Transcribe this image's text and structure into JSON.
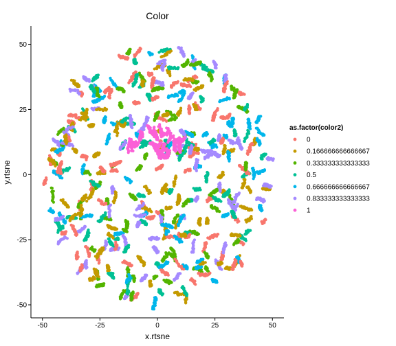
{
  "chart_data": {
    "type": "scatter",
    "title": "Color",
    "xlabel": "x.rtsne",
    "ylabel": "y.rtsne",
    "xlim": [
      -55,
      55
    ],
    "ylim": [
      -55,
      57
    ],
    "x_ticks": [
      -50,
      -25,
      0,
      25,
      50
    ],
    "y_ticks": [
      -50,
      -25,
      0,
      25,
      50
    ],
    "x_tick_labels": [
      "-50",
      "-25",
      "0",
      "25",
      "50"
    ],
    "y_tick_labels": [
      "-50",
      "-25",
      "0",
      "25",
      "50"
    ],
    "grid": false,
    "legend": {
      "title": "as.factor(color2)",
      "position": "right",
      "entries": [
        {
          "label": "0",
          "color": "#F8766D"
        },
        {
          "label": "0.166666666666667",
          "color": "#C49A00"
        },
        {
          "label": "0.333333333333333",
          "color": "#53B400"
        },
        {
          "label": "0.5",
          "color": "#00C094"
        },
        {
          "label": "0.666666666666667",
          "color": "#00B6EB"
        },
        {
          "label": "0.833333333333333",
          "color": "#A58AFF"
        },
        {
          "label": "1",
          "color": "#FB61D7"
        }
      ]
    },
    "cloud": {
      "center": [
        0,
        0
      ],
      "radius": 50,
      "cluster_count": 380,
      "seed": 7,
      "center_group": {
        "label": "1",
        "center": [
          0,
          12
        ],
        "radius": 9
      }
    }
  }
}
